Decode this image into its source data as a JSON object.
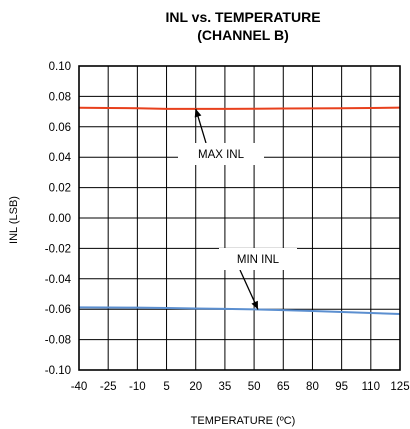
{
  "chart_data": {
    "type": "line",
    "title": "INL vs. TEMPERATURE",
    "subtitle": "(CHANNEL B)",
    "xlabel": "TEMPERATURE (ºC)",
    "ylabel": "INL (LSB)",
    "xlim": [
      -40,
      125
    ],
    "ylim": [
      -0.1,
      0.1
    ],
    "x_ticks": [
      "-40",
      "-25",
      "-10",
      "5",
      "20",
      "35",
      "50",
      "65",
      "80",
      "95",
      "110",
      "125"
    ],
    "y_ticks": [
      "0.10",
      "0.08",
      "0.06",
      "0.04",
      "0.02",
      "0.00",
      "-0.02",
      "-0.04",
      "-0.06",
      "-0.08",
      "-0.10"
    ],
    "grid": true,
    "series": [
      {
        "name": "MAX INL",
        "color": "#e8401c",
        "x": [
          -40,
          -25,
          -10,
          5,
          20,
          35,
          50,
          65,
          80,
          95,
          110,
          125
        ],
        "y": [
          0.0725,
          0.0724,
          0.0722,
          0.0718,
          0.0718,
          0.0718,
          0.0719,
          0.072,
          0.0721,
          0.0722,
          0.0724,
          0.0726
        ]
      },
      {
        "name": "MIN INL",
        "color": "#5b8fd0",
        "x": [
          -40,
          -25,
          -10,
          5,
          20,
          35,
          50,
          65,
          80,
          95,
          110,
          125
        ],
        "y": [
          -0.0588,
          -0.0589,
          -0.059,
          -0.0592,
          -0.0595,
          -0.0598,
          -0.0601,
          -0.0606,
          -0.0612,
          -0.0618,
          -0.0625,
          -0.0632
        ]
      }
    ],
    "annotations": [
      {
        "text": "MAX INL",
        "target_x": 20,
        "target_y": 0.0718
      },
      {
        "text": "MIN INL",
        "target_x": 52,
        "target_y": -0.0602
      }
    ]
  }
}
